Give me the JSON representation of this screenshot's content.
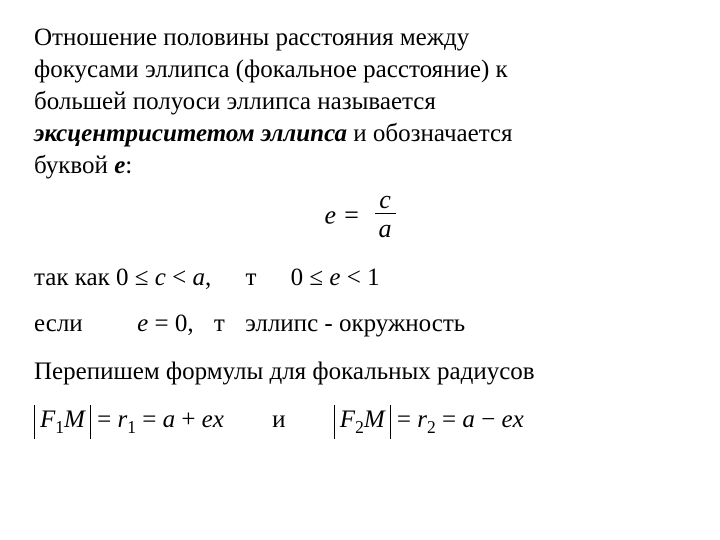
{
  "fonts": {
    "body_size_pt": 19,
    "family": "Times New Roman"
  },
  "colors": {
    "text": "#000000",
    "background": "#ffffff"
  },
  "para": {
    "t1": "Отношение половины расстояния между",
    "t2": "фокусами эллипса (фокальное расстояние) к",
    "t3": "большей полуоси эллипса называется",
    "term": "эксцентриситетом эллипса",
    "t4": " и обозначается",
    "t5": "буквой ",
    "letter": "е",
    "colon": ":"
  },
  "formula_main": {
    "lhs": "e =",
    "num": "c",
    "den": "a"
  },
  "line1": {
    "prefix": "так как ",
    "rel1_a": "0 ≤ ",
    "rel1_b": "c",
    "rel1_c": " < ",
    "rel1_d": "a",
    "rel1_e": ",",
    "mid": "т",
    "rel2_a": "0 ≤ ",
    "rel2_b": "e",
    "rel2_c": " < 1"
  },
  "line2": {
    "prefix": "если",
    "eq_a": "e",
    "eq_b": " = 0,",
    "mid": "т",
    "tail": "эллипс - окружность"
  },
  "line3": "Перепишем формулы  для фокальных радиусов",
  "line4": {
    "F1": "F",
    "sub1": "1",
    "M": "M",
    "eq": " = ",
    "r": "r",
    "a": "a",
    "plus": " + ",
    "minus": " − ",
    "e": "e",
    "x": "x",
    "and": "и",
    "sub2": "2"
  }
}
